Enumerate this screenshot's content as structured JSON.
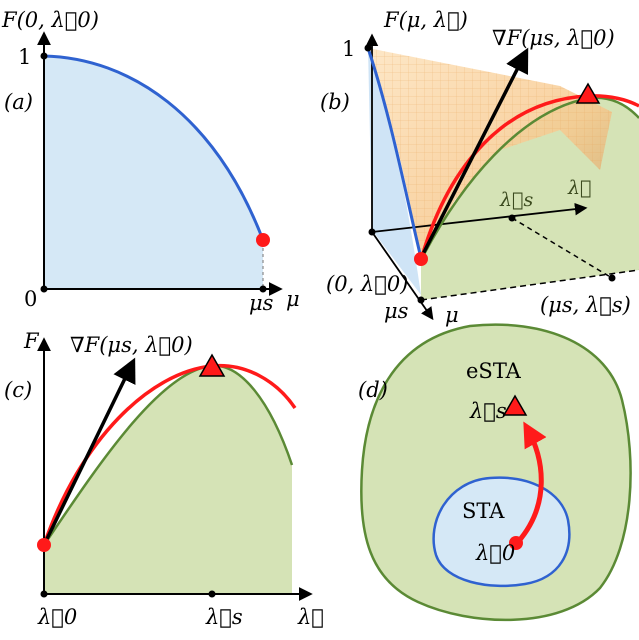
{
  "colors": {
    "blue_fill": "#d5e8f6",
    "blue_line": "#2f62d0",
    "green_fill": "#d5e3b6",
    "green_line": "#5b8a35",
    "red": "#ff1a1a",
    "orange_surface": "#fbd9a8",
    "black": "#000000"
  },
  "panel_a": {
    "tag": "(a)",
    "y_label": "F(0, λ⃗0)",
    "tick_one": "1",
    "origin": "0",
    "mu_s": "μs",
    "x_label": "μ"
  },
  "panel_b": {
    "tag": "(b)",
    "y_label": "F(μ, λ⃗)",
    "tick_one": "1",
    "gradient": "∇F(μs, λ⃗0)",
    "lambda_s": "λ⃗s",
    "lambda": "λ⃗",
    "origin_pt": "(0, λ⃗0)",
    "mu_s": "μs",
    "mu": "μ",
    "mu_s_lambda_s": "(μs, λ⃗s)"
  },
  "panel_c": {
    "tag": "(c)",
    "y_label": "F",
    "gradient": "∇F(μs, λ⃗0)",
    "lambda_0": "λ⃗0",
    "lambda_s": "λ⃗s",
    "x_label": "λ⃗"
  },
  "panel_d": {
    "tag": "(d)",
    "outer_region": "eSTA",
    "inner_region": "STA",
    "lambda_s": "λ⃗s",
    "lambda_0": "λ⃗0"
  }
}
